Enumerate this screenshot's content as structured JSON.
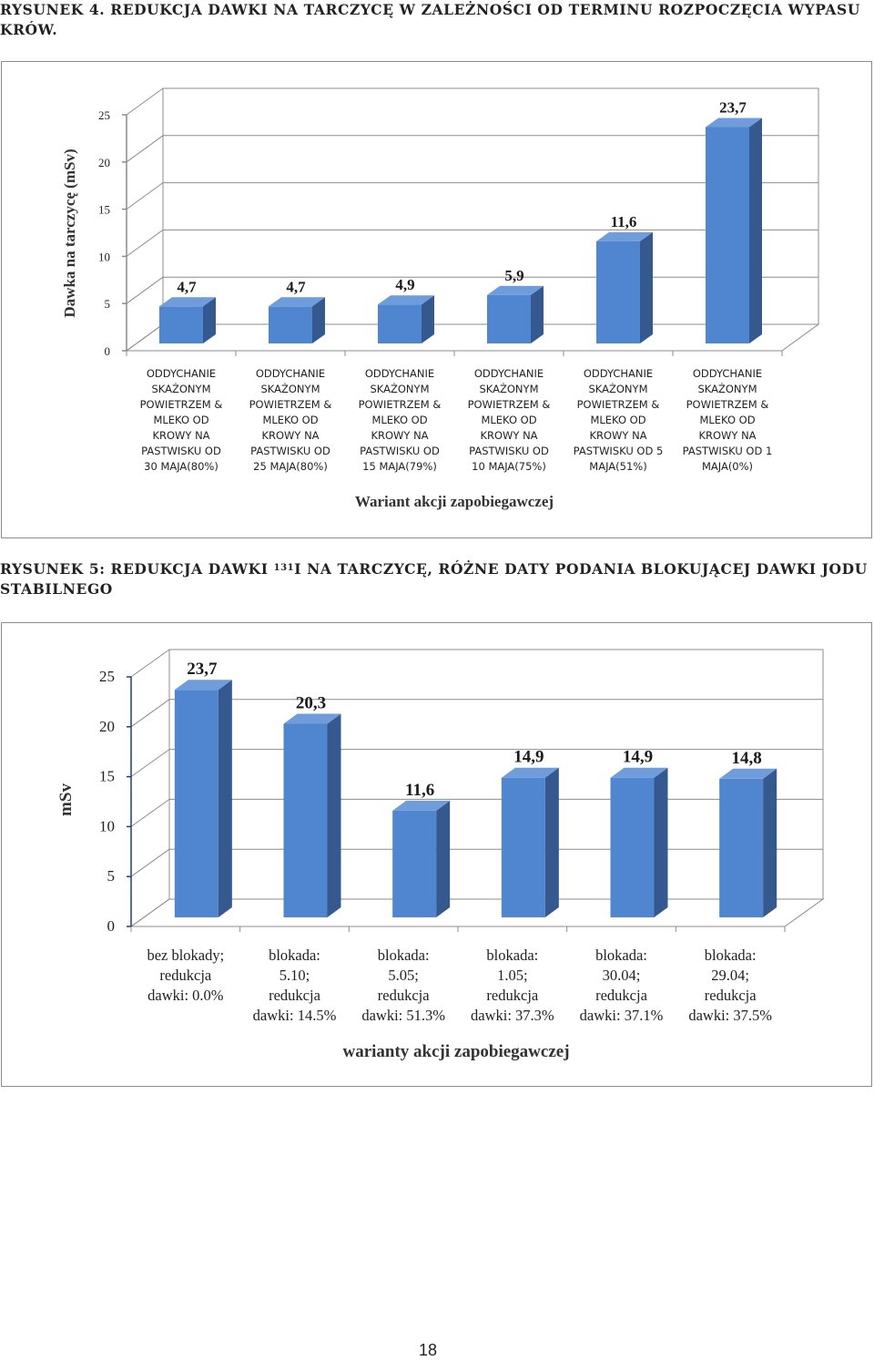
{
  "figure1": {
    "caption": "RYSUNEK 4. REDUKCJA DAWKI NA TARCZYCĘ W ZALEŻNOŚCI OD TERMINU ROZPOCZĘCIA WYPASU KRÓW."
  },
  "figure2": {
    "caption_before": "RYSUNEK 5: REDUKCJA DAWKI ",
    "caption_sup": "131",
    "caption_after": "I NA TARCZYCĘ, RÓŻNE DATY PODANIA BLOKUJĄCEJ DAWKI JODU STABILNEGO"
  },
  "page_number": "18",
  "colors": {
    "bar_front": "#4f86cf",
    "bar_side": "#35588f",
    "bar_top": "#6f9ddc",
    "grid": "#8c8c8c"
  },
  "chart_data": [
    {
      "type": "bar",
      "title": "",
      "xlabel": "Wariant akcji zapobiegawczej",
      "ylabel": "Dawka na tarczycę (mSv)",
      "ylim": [
        0,
        25
      ],
      "yticks": [
        "0",
        "5",
        "10",
        "15",
        "20",
        "25"
      ],
      "grid": true,
      "style": "3d",
      "categories": [
        [
          "ODDYCHANIE",
          "SKAŻONYM",
          "POWIETRZEM  &",
          "MLEKO OD",
          "KROWY NA",
          "PASTWISKU OD",
          "30 MAJA(80%)"
        ],
        [
          "ODDYCHANIE",
          "SKAŻONYM",
          "POWIETRZEM  &",
          "MLEKO OD",
          "KROWY NA",
          "PASTWISKU OD",
          "25 MAJA(80%)"
        ],
        [
          "ODDYCHANIE",
          "SKAŻONYM",
          "POWIETRZEM  &",
          "MLEKO OD",
          "KROWY NA",
          "PASTWISKU OD",
          "15 MAJA(79%)"
        ],
        [
          "ODDYCHANIE",
          "SKAŻONYM",
          "POWIETRZEM  &",
          "MLEKO OD",
          "KROWY NA",
          "PASTWISKU OD",
          "10 MAJA(75%)"
        ],
        [
          "ODDYCHANIE",
          "SKAŻONYM",
          "POWIETRZEM  &",
          "MLEKO OD",
          "KROWY NA",
          "PASTWISKU OD 5",
          "MAJA(51%)"
        ],
        [
          "ODDYCHANIE",
          "SKAŻONYM",
          "POWIETRZEM  &",
          "MLEKO OD",
          "KROWY NA",
          "PASTWISKU OD 1",
          "MAJA(0%)"
        ]
      ],
      "values": [
        4.7,
        4.7,
        4.9,
        5.9,
        11.6,
        23.7
      ],
      "value_labels": [
        "4,7",
        "4,7",
        "4,9",
        "5,9",
        "11,6",
        "23,7"
      ]
    },
    {
      "type": "bar",
      "title": "",
      "xlabel": "warianty akcji zapobiegawczej",
      "ylabel": "mSv",
      "ylim": [
        0,
        25
      ],
      "yticks": [
        "0",
        "5",
        "10",
        "15",
        "20",
        "25"
      ],
      "grid": true,
      "style": "3d",
      "categories": [
        [
          "bez blokady;",
          "redukcja",
          "dawki: 0.0%"
        ],
        [
          "blokada:",
          "5.10;",
          "redukcja",
          "dawki: 14.5%"
        ],
        [
          "blokada:",
          "5.05;",
          "redukcja",
          "dawki: 51.3%"
        ],
        [
          "blokada:",
          "1.05;",
          "redukcja",
          "dawki: 37.3%"
        ],
        [
          "blokada:",
          "30.04;",
          "redukcja",
          "dawki: 37.1%"
        ],
        [
          "blokada:",
          "29.04;",
          "redukcja",
          "dawki: 37.5%"
        ]
      ],
      "values": [
        23.7,
        20.3,
        11.6,
        14.9,
        14.9,
        14.8
      ],
      "value_labels": [
        "23,7",
        "20,3",
        "11,6",
        "14,9",
        "14,9",
        "14,8"
      ]
    }
  ]
}
